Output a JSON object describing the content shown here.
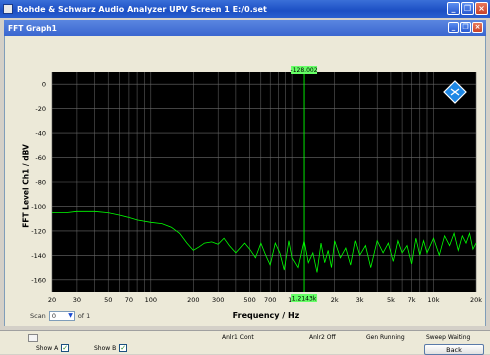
{
  "window": {
    "title": "Rohde & Schwarz Audio Analyzer UPV Screen 1 E:/0.set",
    "subwindow_title": "FFT Graph1",
    "minimize_glyph": "_",
    "restore_glyph": "❐",
    "close_glyph": "×"
  },
  "chart_data": {
    "type": "line",
    "xlabel": "Frequency / Hz",
    "ylabel": "FFT Level Ch1 / dBV",
    "x_scale": "log",
    "xlim": [
      20,
      20000
    ],
    "ylim": [
      -170,
      10
    ],
    "grid": true,
    "y_ticks": [
      0,
      -20,
      -40,
      -60,
      -80,
      -100,
      -120,
      -140,
      -160
    ],
    "x_ticks": [
      {
        "v": 20,
        "l": "20"
      },
      {
        "v": 30,
        "l": "30"
      },
      {
        "v": 50,
        "l": "50"
      },
      {
        "v": 70,
        "l": "70"
      },
      {
        "v": 100,
        "l": "100"
      },
      {
        "v": 200,
        "l": "200"
      },
      {
        "v": 300,
        "l": "300"
      },
      {
        "v": 500,
        "l": "500"
      },
      {
        "v": 700,
        "l": "700"
      },
      {
        "v": 1000,
        "l": "1k"
      },
      {
        "v": 2000,
        "l": "2k"
      },
      {
        "v": 3000,
        "l": "3k"
      },
      {
        "v": 5000,
        "l": "5k"
      },
      {
        "v": 7000,
        "l": "7k"
      },
      {
        "v": 10000,
        "l": "10k"
      },
      {
        "v": 20000,
        "l": "20k"
      }
    ],
    "cursor": {
      "x": 1214.3,
      "x_label": "1.2143k",
      "y_label": "-128.002"
    },
    "series": [
      {
        "color": "#00ff00",
        "points": [
          [
            20,
            -105
          ],
          [
            25,
            -105
          ],
          [
            30,
            -104
          ],
          [
            35,
            -104
          ],
          [
            40,
            -104
          ],
          [
            50,
            -105
          ],
          [
            60,
            -107
          ],
          [
            70,
            -109
          ],
          [
            80,
            -111
          ],
          [
            100,
            -113
          ],
          [
            120,
            -114
          ],
          [
            140,
            -117
          ],
          [
            160,
            -122
          ],
          [
            180,
            -130
          ],
          [
            200,
            -136
          ],
          [
            220,
            -133
          ],
          [
            240,
            -130
          ],
          [
            270,
            -129
          ],
          [
            300,
            -131
          ],
          [
            330,
            -126
          ],
          [
            360,
            -132
          ],
          [
            400,
            -138
          ],
          [
            430,
            -134
          ],
          [
            460,
            -130
          ],
          [
            500,
            -135
          ],
          [
            550,
            -142
          ],
          [
            600,
            -130
          ],
          [
            650,
            -140
          ],
          [
            700,
            -148
          ],
          [
            760,
            -130
          ],
          [
            820,
            -138
          ],
          [
            880,
            -152
          ],
          [
            950,
            -128
          ],
          [
            1000,
            -142
          ],
          [
            1100,
            -150
          ],
          [
            1214,
            -128
          ],
          [
            1300,
            -146
          ],
          [
            1400,
            -138
          ],
          [
            1500,
            -154
          ],
          [
            1600,
            -130
          ],
          [
            1700,
            -146
          ],
          [
            1800,
            -136
          ],
          [
            1900,
            -150
          ],
          [
            2000,
            -128
          ],
          [
            2200,
            -142
          ],
          [
            2400,
            -134
          ],
          [
            2600,
            -148
          ],
          [
            2800,
            -128
          ],
          [
            3000,
            -140
          ],
          [
            3300,
            -132
          ],
          [
            3600,
            -150
          ],
          [
            4000,
            -128
          ],
          [
            4400,
            -138
          ],
          [
            4800,
            -130
          ],
          [
            5200,
            -145
          ],
          [
            5600,
            -128
          ],
          [
            6000,
            -138
          ],
          [
            6500,
            -132
          ],
          [
            7000,
            -147
          ],
          [
            7500,
            -126
          ],
          [
            8000,
            -140
          ],
          [
            8500,
            -128
          ],
          [
            9000,
            -138
          ],
          [
            10000,
            -126
          ],
          [
            11000,
            -140
          ],
          [
            12000,
            -124
          ],
          [
            13000,
            -132
          ],
          [
            14000,
            -122
          ],
          [
            15000,
            -136
          ],
          [
            16000,
            -124
          ],
          [
            17000,
            -130
          ],
          [
            18000,
            -122
          ],
          [
            19000,
            -135
          ],
          [
            20000,
            -130
          ]
        ]
      }
    ]
  },
  "scan": {
    "label": "Scan",
    "value": "0",
    "of_label": "of 1"
  },
  "status": {
    "anlr1": "Anlr1 Cont",
    "anlr2": "Anlr2 Off",
    "gen": "Gen Running",
    "sweep": "Sweep Waiting"
  },
  "controls": {
    "show_a": "Show A",
    "show_b": "Show B",
    "check_glyph": "✓",
    "back": "Back"
  }
}
